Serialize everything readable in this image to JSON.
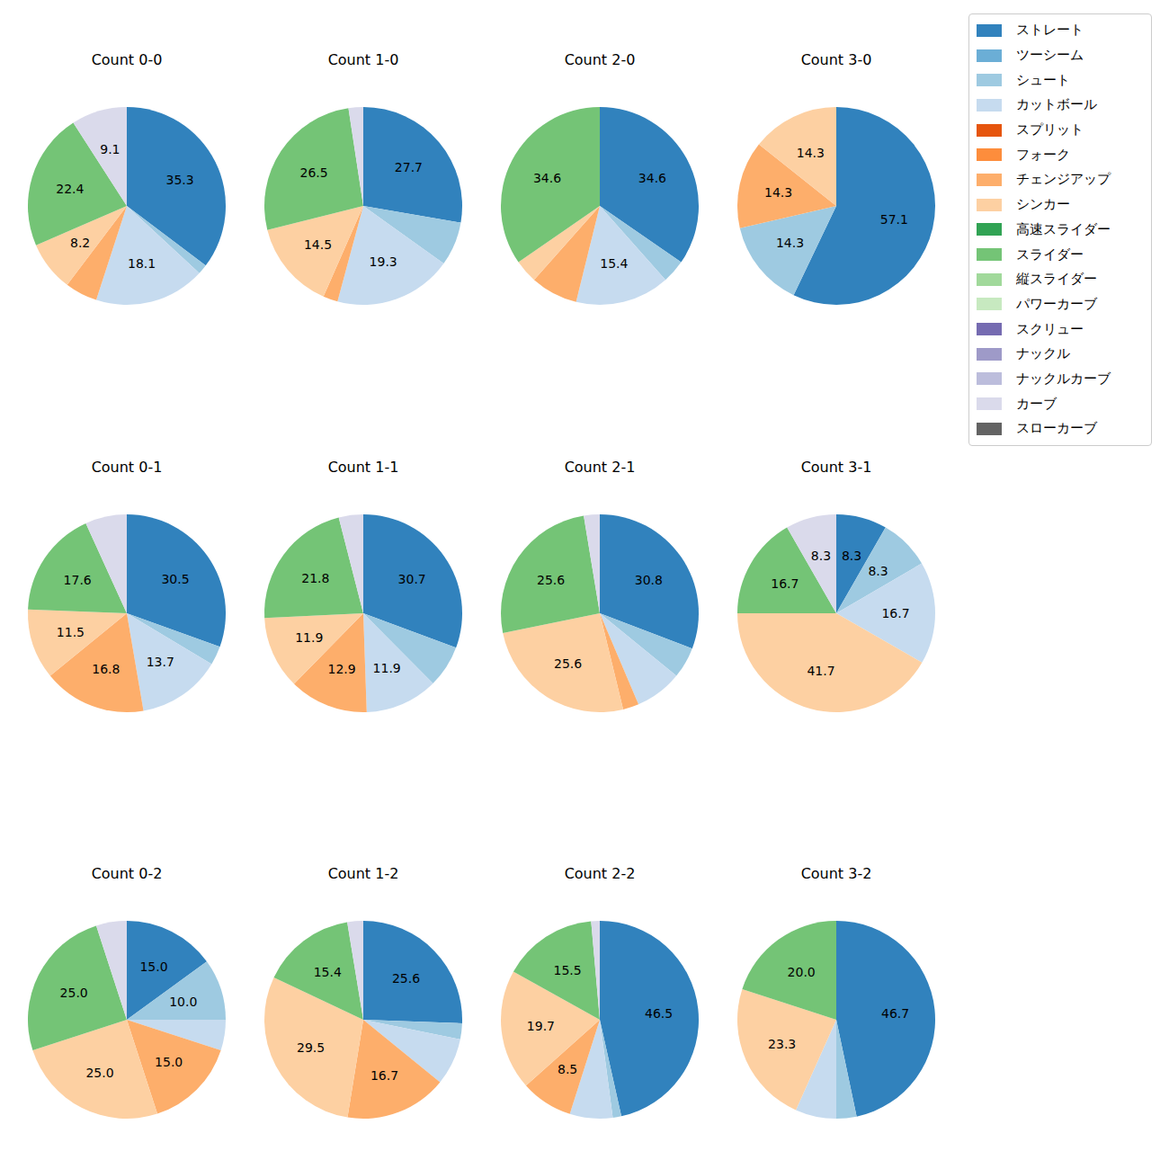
{
  "chart_data": [
    {
      "type": "pie",
      "title": "Count 0-0",
      "categories": [
        "ストレート",
        "シュート",
        "カットボール",
        "チェンジアップ",
        "シンカー",
        "スライダー",
        "カーブ"
      ],
      "values": [
        35.3,
        1.6,
        18.1,
        5.3,
        8.2,
        22.4,
        9.1
      ],
      "colors": [
        "#3182bd",
        "#9ecae1",
        "#c6dbef",
        "#fdae6b",
        "#fdd0a2",
        "#74c476",
        "#dadaeb"
      ],
      "data_labels": true,
      "value_labels": [
        "35.3",
        null,
        "18.1",
        null,
        "8.2",
        "22.4",
        "9.1"
      ]
    },
    {
      "type": "pie",
      "title": "Count 1-0",
      "categories": [
        "ストレート",
        "シュート",
        "カットボール",
        "チェンジアップ",
        "シンカー",
        "スライダー",
        "カーブ"
      ],
      "values": [
        27.7,
        7.2,
        19.3,
        2.4,
        14.5,
        26.5,
        2.4
      ],
      "colors": [
        "#3182bd",
        "#9ecae1",
        "#c6dbef",
        "#fdae6b",
        "#fdd0a2",
        "#74c476",
        "#dadaeb"
      ],
      "data_labels": true,
      "value_labels": [
        "27.7",
        null,
        "19.3",
        null,
        "14.5",
        "26.5",
        null
      ]
    },
    {
      "type": "pie",
      "title": "Count 2-0",
      "categories": [
        "ストレート",
        "シュート",
        "カットボール",
        "チェンジアップ",
        "シンカー",
        "スライダー"
      ],
      "values": [
        34.6,
        3.8,
        15.4,
        7.7,
        3.8,
        34.6
      ],
      "colors": [
        "#3182bd",
        "#9ecae1",
        "#c6dbef",
        "#fdae6b",
        "#fdd0a2",
        "#74c476"
      ],
      "data_labels": true,
      "value_labels": [
        "34.6",
        null,
        "15.4",
        null,
        null,
        "34.6"
      ]
    },
    {
      "type": "pie",
      "title": "Count 3-0",
      "categories": [
        "ストレート",
        "シュート",
        "チェンジアップ",
        "シンカー"
      ],
      "values": [
        57.1,
        14.3,
        14.3,
        14.3
      ],
      "colors": [
        "#3182bd",
        "#9ecae1",
        "#fdae6b",
        "#fdd0a2"
      ],
      "data_labels": true,
      "value_labels": [
        "57.1",
        "14.3",
        "14.3",
        "14.3"
      ]
    },
    {
      "type": "pie",
      "title": "Count 0-1",
      "categories": [
        "ストレート",
        "シュート",
        "カットボール",
        "チェンジアップ",
        "シンカー",
        "スライダー",
        "カーブ"
      ],
      "values": [
        30.5,
        3.1,
        13.7,
        16.8,
        11.5,
        17.6,
        6.8
      ],
      "colors": [
        "#3182bd",
        "#9ecae1",
        "#c6dbef",
        "#fdae6b",
        "#fdd0a2",
        "#74c476",
        "#dadaeb"
      ],
      "data_labels": true,
      "value_labels": [
        "30.5",
        null,
        "13.7",
        "16.8",
        "11.5",
        "17.6",
        null
      ]
    },
    {
      "type": "pie",
      "title": "Count 1-1",
      "categories": [
        "ストレート",
        "シュート",
        "カットボール",
        "チェンジアップ",
        "シンカー",
        "スライダー",
        "カーブ"
      ],
      "values": [
        30.7,
        6.9,
        11.9,
        12.9,
        11.9,
        21.8,
        4.0
      ],
      "colors": [
        "#3182bd",
        "#9ecae1",
        "#c6dbef",
        "#fdae6b",
        "#fdd0a2",
        "#74c476",
        "#dadaeb"
      ],
      "data_labels": true,
      "value_labels": [
        "30.7",
        null,
        "11.9",
        "12.9",
        "11.9",
        "21.8",
        null
      ]
    },
    {
      "type": "pie",
      "title": "Count 2-1",
      "categories": [
        "ストレート",
        "シュート",
        "カットボール",
        "チェンジアップ",
        "シンカー",
        "スライダー",
        "カーブ"
      ],
      "values": [
        30.8,
        5.1,
        7.7,
        2.6,
        25.6,
        25.6,
        2.6
      ],
      "colors": [
        "#3182bd",
        "#9ecae1",
        "#c6dbef",
        "#fdae6b",
        "#fdd0a2",
        "#74c476",
        "#dadaeb"
      ],
      "data_labels": true,
      "value_labels": [
        "30.8",
        null,
        null,
        null,
        "25.6",
        "25.6",
        null
      ]
    },
    {
      "type": "pie",
      "title": "Count 3-1",
      "categories": [
        "ストレート",
        "シュート",
        "カットボール",
        "シンカー",
        "スライダー",
        "カーブ"
      ],
      "values": [
        8.3,
        8.3,
        16.7,
        41.7,
        16.7,
        8.3
      ],
      "colors": [
        "#3182bd",
        "#9ecae1",
        "#c6dbef",
        "#fdd0a2",
        "#74c476",
        "#dadaeb"
      ],
      "data_labels": true,
      "value_labels": [
        "8.3",
        "8.3",
        "16.7",
        "41.7",
        "16.7",
        "8.3"
      ]
    },
    {
      "type": "pie",
      "title": "Count 0-2",
      "categories": [
        "ストレート",
        "シュート",
        "カットボール",
        "チェンジアップ",
        "シンカー",
        "スライダー",
        "カーブ"
      ],
      "values": [
        15.0,
        10.0,
        5.0,
        15.0,
        25.0,
        25.0,
        5.0
      ],
      "colors": [
        "#3182bd",
        "#9ecae1",
        "#c6dbef",
        "#fdae6b",
        "#fdd0a2",
        "#74c476",
        "#dadaeb"
      ],
      "data_labels": true,
      "value_labels": [
        "15.0",
        "10.0",
        null,
        "15.0",
        "25.0",
        "25.0",
        null
      ]
    },
    {
      "type": "pie",
      "title": "Count 1-2",
      "categories": [
        "ストレート",
        "シュート",
        "カットボール",
        "チェンジアップ",
        "シンカー",
        "スライダー",
        "カーブ"
      ],
      "values": [
        25.6,
        2.6,
        7.7,
        16.7,
        29.5,
        15.4,
        2.6
      ],
      "colors": [
        "#3182bd",
        "#9ecae1",
        "#c6dbef",
        "#fdae6b",
        "#fdd0a2",
        "#74c476",
        "#dadaeb"
      ],
      "data_labels": true,
      "value_labels": [
        "25.6",
        null,
        null,
        "16.7",
        "29.5",
        "15.4",
        null
      ]
    },
    {
      "type": "pie",
      "title": "Count 2-2",
      "categories": [
        "ストレート",
        "シュート",
        "カットボール",
        "チェンジアップ",
        "シンカー",
        "スライダー",
        "カーブ"
      ],
      "values": [
        46.5,
        1.4,
        7.0,
        8.5,
        19.7,
        15.5,
        1.4
      ],
      "colors": [
        "#3182bd",
        "#9ecae1",
        "#c6dbef",
        "#fdae6b",
        "#fdd0a2",
        "#74c476",
        "#dadaeb"
      ],
      "data_labels": true,
      "value_labels": [
        "46.5",
        null,
        null,
        "8.5",
        "19.7",
        "15.5",
        null
      ]
    },
    {
      "type": "pie",
      "title": "Count 3-2",
      "categories": [
        "ストレート",
        "シュート",
        "カットボール",
        "シンカー",
        "スライダー"
      ],
      "values": [
        46.7,
        3.3,
        6.7,
        23.3,
        20.0
      ],
      "colors": [
        "#3182bd",
        "#9ecae1",
        "#c6dbef",
        "#fdd0a2",
        "#74c476"
      ],
      "data_labels": true,
      "value_labels": [
        "46.7",
        null,
        null,
        "23.3",
        "20.0"
      ]
    }
  ],
  "shared_legend": {
    "categories": [
      "ストレート",
      "ツーシーム",
      "シュート",
      "カットボール",
      "スプリット",
      "フォーク",
      "チェンジアップ",
      "シンカー",
      "高速スライダー",
      "スライダー",
      "縦スライダー",
      "パワーカーブ",
      "スクリュー",
      "ナックル",
      "ナックルカーブ",
      "カーブ",
      "スローカーブ"
    ],
    "colors": [
      "#3182bd",
      "#6baed6",
      "#9ecae1",
      "#c6dbef",
      "#e6550d",
      "#fd8d3c",
      "#fdae6b",
      "#fdd0a2",
      "#31a354",
      "#74c476",
      "#a1d99b",
      "#c7e9c0",
      "#756bb1",
      "#9e9ac8",
      "#bcbddc",
      "#dadaeb",
      "#636363"
    ]
  }
}
